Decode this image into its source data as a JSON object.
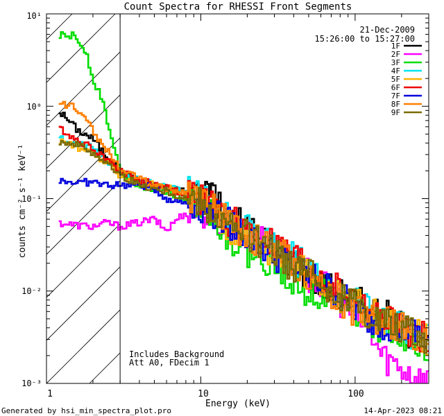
{
  "chart_data": {
    "type": "line",
    "title": "Count Spectra for RHESSI Front Segments",
    "xlabel": "Energy (keV)",
    "ylabel": "counts cm⁻² s⁻¹ keV⁻¹",
    "xscale": "log",
    "yscale": "log",
    "xlim": [
      1,
      300
    ],
    "ylim": [
      0.001,
      10
    ],
    "x_tick_labels": [
      "1",
      "10",
      "100"
    ],
    "y_tick_labels": [
      "10⁻³",
      "10⁻²",
      "10⁻¹",
      "10⁰",
      "10¹"
    ],
    "attenuator_boundary_kev": 3,
    "legend_position": "top-right",
    "date": "21-Dec-2009",
    "time_range": "15:26:00 to 15:27:00",
    "annotation_lines": [
      "Includes Background",
      "Att A0, FDecim 1"
    ],
    "footer_left": "Generated by hsi_min_spectra_plot.pro",
    "footer_right": "14-Apr-2023 08:21",
    "series": [
      {
        "name": "1F",
        "color": "#000000",
        "x": [
          1.2,
          1.4,
          1.6,
          2.0,
          2.4,
          3.0,
          4.0,
          5.0,
          6.0,
          8.0,
          10.0,
          11.0,
          12.0,
          13.0,
          15.0,
          20.0,
          30.0,
          40.0,
          60.0,
          100.0,
          150.0,
          200.0,
          300.0
        ],
        "values": [
          0.9,
          0.7,
          0.55,
          0.45,
          0.3,
          0.2,
          0.15,
          0.14,
          0.13,
          0.12,
          0.11,
          0.13,
          0.15,
          0.08,
          0.06,
          0.05,
          0.03,
          0.02,
          0.012,
          0.008,
          0.006,
          0.004,
          0.003
        ]
      },
      {
        "name": "2F",
        "color": "#ff00ff",
        "x": [
          1.2,
          1.5,
          2.0,
          2.5,
          3.0,
          4.0,
          5.0,
          6.0,
          7.0,
          8.0,
          10.0,
          12.0,
          15.0,
          20.0,
          30.0,
          50.0,
          80.0,
          120.0,
          150.0,
          200.0,
          250.0,
          300.0
        ],
        "values": [
          0.055,
          0.052,
          0.05,
          0.055,
          0.05,
          0.055,
          0.06,
          0.045,
          0.06,
          0.07,
          0.075,
          0.06,
          0.05,
          0.04,
          0.03,
          0.015,
          0.008,
          0.004,
          0.002,
          0.0015,
          0.0012,
          0.001
        ]
      },
      {
        "name": "3F",
        "color": "#00dd00",
        "x": [
          1.2,
          1.5,
          1.8,
          2.0,
          2.3,
          2.6,
          3.0,
          4.0,
          6.0,
          8.0,
          10.0,
          12.0,
          15.0,
          20.0,
          30.0,
          50.0,
          80.0,
          120.0,
          200.0,
          300.0
        ],
        "values": [
          5.8,
          5.8,
          4.0,
          2.0,
          1.2,
          0.5,
          0.2,
          0.14,
          0.12,
          0.1,
          0.09,
          0.07,
          0.04,
          0.025,
          0.02,
          0.01,
          0.008,
          0.005,
          0.003,
          0.002
        ]
      },
      {
        "name": "4F",
        "color": "#00e5ee",
        "x": [
          1.2,
          1.5,
          2.0,
          2.5,
          3.0,
          4.0,
          6.0,
          8.0,
          10.0,
          12.0,
          15.0,
          20.0,
          30.0,
          50.0,
          80.0,
          120.0,
          200.0,
          300.0
        ],
        "values": [
          0.45,
          0.4,
          0.35,
          0.25,
          0.2,
          0.16,
          0.13,
          0.12,
          0.1,
          0.08,
          0.06,
          0.045,
          0.03,
          0.018,
          0.01,
          0.006,
          0.004,
          0.003
        ]
      },
      {
        "name": "5F",
        "color": "#ffb300",
        "x": [
          1.2,
          1.5,
          2.0,
          2.5,
          3.0,
          4.0,
          6.0,
          8.0,
          10.0,
          12.0,
          15.0,
          20.0,
          30.0,
          50.0,
          80.0,
          120.0,
          200.0,
          300.0
        ],
        "values": [
          0.42,
          0.38,
          0.3,
          0.24,
          0.18,
          0.15,
          0.13,
          0.11,
          0.1,
          0.08,
          0.05,
          0.04,
          0.025,
          0.015,
          0.01,
          0.006,
          0.004,
          0.003
        ]
      },
      {
        "name": "6F",
        "color": "#ee0000",
        "x": [
          1.2,
          1.5,
          2.0,
          2.5,
          3.0,
          4.0,
          6.0,
          8.0,
          10.0,
          12.0,
          15.0,
          20.0,
          30.0,
          50.0,
          80.0,
          120.0,
          200.0,
          300.0
        ],
        "values": [
          0.6,
          0.45,
          0.35,
          0.27,
          0.2,
          0.16,
          0.13,
          0.11,
          0.1,
          0.08,
          0.06,
          0.045,
          0.03,
          0.018,
          0.01,
          0.006,
          0.004,
          0.003
        ]
      },
      {
        "name": "7F",
        "color": "#0000dd",
        "x": [
          1.2,
          1.5,
          2.0,
          2.5,
          3.0,
          4.0,
          5.0,
          6.0,
          8.0,
          10.0,
          12.0,
          15.0,
          20.0,
          30.0,
          50.0,
          80.0,
          120.0,
          200.0,
          300.0
        ],
        "values": [
          0.16,
          0.15,
          0.15,
          0.14,
          0.14,
          0.14,
          0.13,
          0.1,
          0.09,
          0.085,
          0.07,
          0.055,
          0.04,
          0.025,
          0.015,
          0.009,
          0.005,
          0.004,
          0.003
        ]
      },
      {
        "name": "8F",
        "color": "#ff7f00",
        "x": [
          1.2,
          1.5,
          1.8,
          2.0,
          2.4,
          3.0,
          4.0,
          6.0,
          8.0,
          10.0,
          12.0,
          15.0,
          20.0,
          30.0,
          50.0,
          80.0,
          120.0,
          200.0,
          300.0
        ],
        "values": [
          1.05,
          1.0,
          0.8,
          0.55,
          0.35,
          0.22,
          0.16,
          0.13,
          0.11,
          0.1,
          0.08,
          0.06,
          0.04,
          0.03,
          0.015,
          0.008,
          0.005,
          0.004,
          0.003
        ]
      },
      {
        "name": "9F",
        "color": "#7a6a00",
        "x": [
          1.2,
          1.5,
          2.0,
          2.4,
          3.0,
          4.0,
          6.0,
          8.0,
          10.0,
          12.0,
          15.0,
          20.0,
          30.0,
          50.0,
          80.0,
          120.0,
          200.0,
          300.0
        ],
        "values": [
          0.42,
          0.4,
          0.32,
          0.25,
          0.18,
          0.14,
          0.12,
          0.1,
          0.09,
          0.07,
          0.05,
          0.04,
          0.025,
          0.015,
          0.009,
          0.006,
          0.004,
          0.003
        ]
      }
    ]
  }
}
